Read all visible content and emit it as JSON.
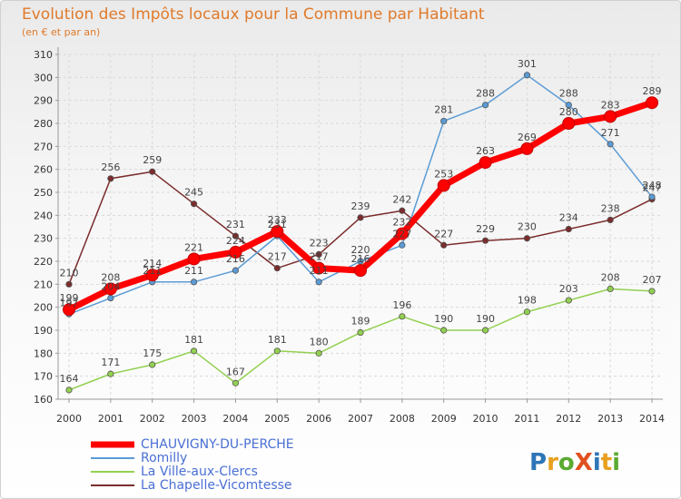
{
  "chart_data": {
    "type": "line",
    "title": "Evolution des Impôts locaux pour la Commune par Habitant",
    "subtitle": "(en € et par an)",
    "x": [
      "2000",
      "2001",
      "2002",
      "2003",
      "2004",
      "2005",
      "2006",
      "2007",
      "2008",
      "2009",
      "2010",
      "2011",
      "2012",
      "2013",
      "2014"
    ],
    "ylim": [
      160,
      310
    ],
    "yticks": [
      160,
      170,
      180,
      190,
      200,
      210,
      220,
      230,
      240,
      250,
      260,
      270,
      280,
      290,
      300,
      310
    ],
    "grid": true,
    "legend_position": "bottom-left",
    "series": [
      {
        "name": "CHAUVIGNY-DU-PERCHE",
        "color": "#ff0000",
        "values": [
          199,
          208,
          214,
          221,
          224,
          233,
          217,
          216,
          232,
          253,
          263,
          269,
          280,
          283,
          289
        ]
      },
      {
        "name": "Romilly",
        "color": "#5b9bd5",
        "values": [
          197,
          204,
          211,
          211,
          216,
          231,
          211,
          220,
          227,
          281,
          288,
          301,
          288,
          271,
          248
        ]
      },
      {
        "name": "La Ville-aux-Clercs",
        "color": "#92d050",
        "values": [
          164,
          171,
          175,
          181,
          167,
          181,
          180,
          189,
          196,
          190,
          190,
          198,
          203,
          208,
          207
        ]
      },
      {
        "name": "La Chapelle-Vicomtesse",
        "color": "#7b2c2c",
        "values": [
          210,
          256,
          259,
          245,
          231,
          217,
          223,
          239,
          242,
          227,
          229,
          230,
          234,
          238,
          247
        ]
      }
    ]
  },
  "logo": {
    "text": "ProXiti"
  }
}
